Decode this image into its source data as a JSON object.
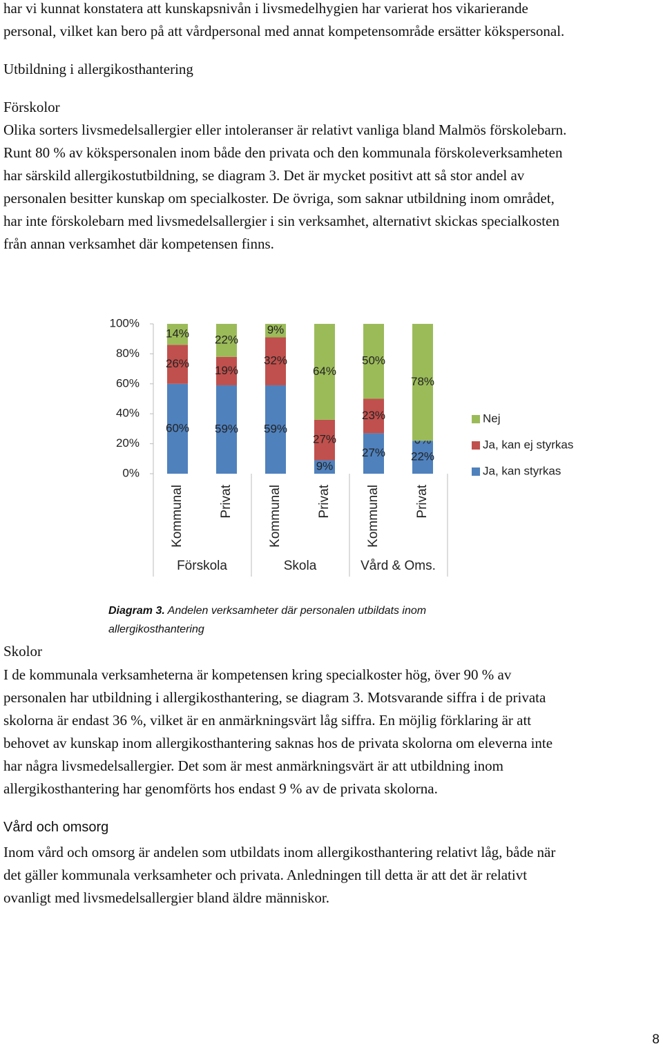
{
  "document": {
    "intro": {
      "lines": [
        "har vi kunnat konstatera att kunskapsnivån i livsmedelhygien har varierat hos vikarierande",
        "personal, vilket kan bero på att vårdpersonal med annat kompetensområde ersätter kökspersonal."
      ]
    },
    "section_heading": "Utbildning i allergikosthantering",
    "forskolor": {
      "heading": "Förskolor",
      "lines": [
        "Olika sorters livsmedelsallergier eller intoleranser är relativt vanliga bland Malmös förskolebarn.",
        "Runt 80 % av kökspersonalen inom både den privata och den kommunala förskoleverksamheten",
        "har särskild allergikostutbildning, se diagram 3. Det är mycket positivt att så stor andel av",
        "personalen besitter kunskap om specialkoster. De övriga, som saknar utbildning inom området,",
        "har inte förskolebarn med livsmedelsallergier i sin verksamhet, alternativt skickas specialkosten",
        "från annan verksamhet där kompetensen finns."
      ]
    },
    "caption": {
      "label": "Diagram 3.",
      "text_lines": [
        "Andelen verksamheter där personalen utbildats inom",
        "allergikosthantering"
      ]
    },
    "skolor": {
      "heading": "Skolor",
      "lines": [
        "I de kommunala verksamheterna är kompetensen kring specialkoster hög, över 90 % av",
        "personalen har utbildning i allergikosthantering, se diagram 3. Motsvarande siffra i de privata",
        "skolorna är endast 36 %, vilket är en anmärkningsvärt låg siffra. En möjlig förklaring är att",
        "behovet av kunskap inom allergikosthantering saknas hos de privata skolorna om eleverna inte",
        "har några livsmedelsallergier. Det som är mest anmärkningsvärt är att utbildning inom",
        "allergikosthantering har genomförts hos endast 9 % av de privata skolorna."
      ]
    },
    "vard": {
      "heading": "Vård och omsorg",
      "lines": [
        "Inom vård och omsorg är andelen som utbildats inom allergikosthantering relativt låg, både när",
        "det gäller kommunala verksamheter och privata. Anledningen till detta är att det är relativt",
        "ovanligt med livsmedelsallergier bland äldre människor."
      ]
    },
    "page_number": "8"
  },
  "chart_data": {
    "type": "stacked_bar",
    "categories": [
      "Kommunal",
      "Privat",
      "Kommunal",
      "Privat",
      "Kommunal",
      "Privat"
    ],
    "group_labels": [
      "Förskola",
      "Skola",
      "Vård & Oms."
    ],
    "series": [
      {
        "name": "Ja, kan styrkas",
        "color": "#4f81bd",
        "values": [
          60,
          59,
          59,
          9,
          27,
          22
        ],
        "value_labels": [
          "60%",
          "59%",
          "59%",
          "9%",
          "27%",
          "22%"
        ]
      },
      {
        "name": "Ja, kan ej styrkas",
        "color": "#c0504d",
        "values": [
          26,
          19,
          32,
          27,
          23,
          0
        ],
        "value_labels": [
          "26%",
          "19%",
          "32%",
          "27%",
          "23%",
          "0%"
        ]
      },
      {
        "name": "Nej",
        "color": "#9bbb59",
        "values": [
          14,
          22,
          9,
          64,
          50,
          78
        ],
        "value_labels": [
          "14%",
          "22%",
          "9%",
          "64%",
          "50%",
          "78%"
        ]
      }
    ],
    "ylim": [
      0,
      100
    ],
    "yticks": [
      {
        "value": 0,
        "label": "0%"
      },
      {
        "value": 20,
        "label": "20%"
      },
      {
        "value": 40,
        "label": "40%"
      },
      {
        "value": 60,
        "label": "60%"
      },
      {
        "value": 80,
        "label": "80%"
      },
      {
        "value": 100,
        "label": "100%"
      }
    ]
  }
}
